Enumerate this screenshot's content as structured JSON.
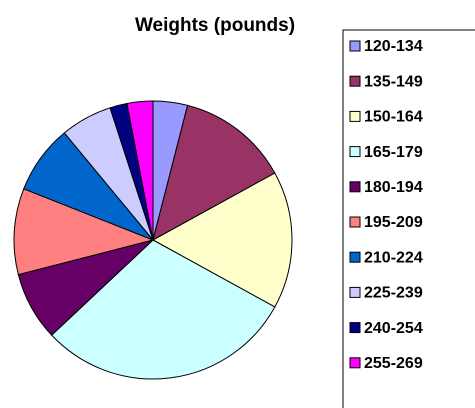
{
  "chart_data": {
    "type": "pie",
    "title": "Weights (pounds)",
    "categories": [
      "120-134",
      "135-149",
      "150-164",
      "165-179",
      "180-194",
      "195-209",
      "210-224",
      "225-239",
      "240-254",
      "255-269"
    ],
    "values": [
      4,
      13,
      16,
      30,
      8,
      10,
      8,
      6,
      2,
      3
    ],
    "colors": [
      "#9999ff",
      "#993366",
      "#ffffcc",
      "#ccffff",
      "#660066",
      "#ff8080",
      "#0066cc",
      "#ccccff",
      "#000080",
      "#ff00ff"
    ],
    "legend": "right"
  }
}
